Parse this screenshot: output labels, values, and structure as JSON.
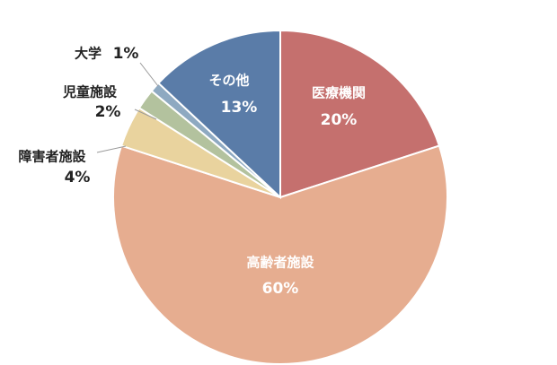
{
  "chart_data": {
    "type": "pie",
    "categories": [
      "医療機関",
      "高齢者施設",
      "障害者施設",
      "児童施設",
      "大学",
      "その他"
    ],
    "values": [
      20,
      60,
      4,
      2,
      1,
      13
    ],
    "value_labels": [
      "20%",
      "60%",
      "4%",
      "2%",
      "1%",
      "13%"
    ],
    "colors": [
      "#c5706e",
      "#e6ad90",
      "#e9d39e",
      "#b3c29e",
      "#8ea9c1",
      "#5a7ca8"
    ]
  }
}
